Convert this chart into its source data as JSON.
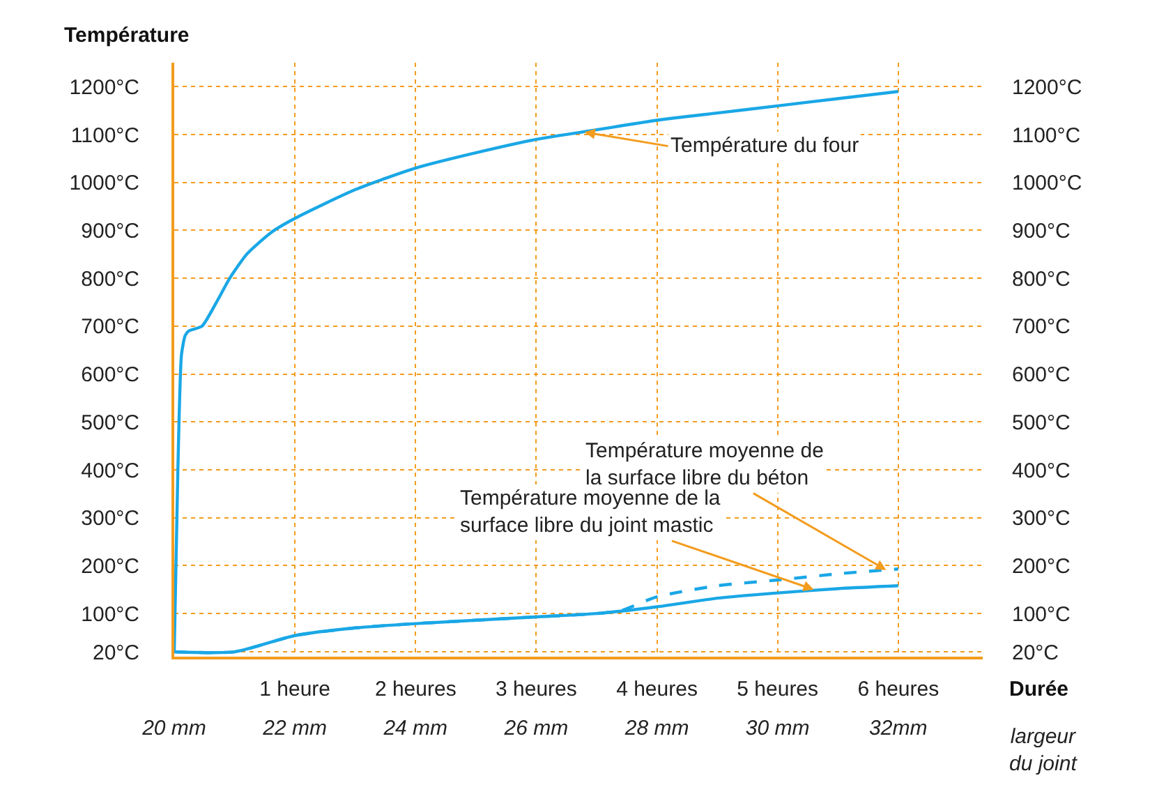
{
  "chart_data": {
    "type": "line",
    "xlabel": "Durée",
    "x2label": "largeur du joint",
    "ylabel": "Température",
    "xlim": [
      0,
      6.7
    ],
    "xticks": [
      {
        "value": 1,
        "label": "1 heure"
      },
      {
        "value": 2,
        "label": "2 heures"
      },
      {
        "value": 3,
        "label": "3 heures"
      },
      {
        "value": 4,
        "label": "4 heures"
      },
      {
        "value": 5,
        "label": "5 heures"
      },
      {
        "value": 6,
        "label": "6 heures"
      }
    ],
    "x2lim": [
      20,
      33.4
    ],
    "x2ticks": [
      {
        "value": 20,
        "label": "20 mm"
      },
      {
        "value": 22,
        "label": "22 mm"
      },
      {
        "value": 24,
        "label": "24 mm"
      },
      {
        "value": 26,
        "label": "26 mm"
      },
      {
        "value": 28,
        "label": "28 mm"
      },
      {
        "value": 30,
        "label": "30 mm"
      },
      {
        "value": 32,
        "label": "32mm"
      }
    ],
    "ylim": [
      10,
      1250
    ],
    "yticks": [
      {
        "value": 20,
        "label": "20°C"
      },
      {
        "value": 100,
        "label": "100°C"
      },
      {
        "value": 200,
        "label": "200°C"
      },
      {
        "value": 300,
        "label": "300°C"
      },
      {
        "value": 400,
        "label": "400°C"
      },
      {
        "value": 500,
        "label": "500°C"
      },
      {
        "value": 600,
        "label": "600°C"
      },
      {
        "value": 700,
        "label": "700°C"
      },
      {
        "value": 800,
        "label": "800°C"
      },
      {
        "value": 900,
        "label": "900°C"
      },
      {
        "value": 1000,
        "label": "1000°C"
      },
      {
        "value": 1100,
        "label": "1100°C"
      },
      {
        "value": 1200,
        "label": "1200°C"
      }
    ],
    "y2lim": [
      10,
      1250
    ],
    "y2ticks": [
      {
        "value": 20,
        "label": "20°C"
      },
      {
        "value": 100,
        "label": "100°C"
      },
      {
        "value": 200,
        "label": "200°C"
      },
      {
        "value": 300,
        "label": "300°C"
      },
      {
        "value": 400,
        "label": "400°C"
      },
      {
        "value": 500,
        "label": "500°C"
      },
      {
        "value": 600,
        "label": "600°C"
      },
      {
        "value": 700,
        "label": "700°C"
      },
      {
        "value": 800,
        "label": "800°C"
      },
      {
        "value": 900,
        "label": "900°C"
      },
      {
        "value": 1000,
        "label": "1000°C"
      },
      {
        "value": 1100,
        "label": "1100°C"
      },
      {
        "value": 1200,
        "label": "1200°C"
      }
    ],
    "grid": true,
    "marker": "none",
    "series": [
      {
        "color": "#1aa7e6",
        "line_style": "solid",
        "x": [
          0,
          0.03,
          0.06,
          0.09,
          0.12,
          0.23,
          0.35,
          0.46,
          0.6,
          0.8,
          1,
          1.5,
          2,
          2.5,
          3,
          3.5,
          4,
          4.5,
          5,
          5.5,
          6
        ],
        "values": [
          20,
          400,
          640,
          680,
          690,
          700,
          750,
          800,
          850,
          895,
          925,
          985,
          1030,
          1062,
          1090,
          1110,
          1130,
          1145,
          1160,
          1175,
          1190
        ]
      },
      {
        "color": "#1aa7e6",
        "line_style": "dashed",
        "x": [
          0,
          0.5,
          1,
          1.5,
          2,
          3,
          3.5,
          3.7,
          4,
          4.5,
          5,
          5.5,
          6
        ],
        "values": [
          20,
          20,
          54,
          70,
          79,
          93,
          100,
          106,
          135,
          158,
          170,
          183,
          193
        ]
      },
      {
        "color": "#1aa7e6",
        "line_style": "solid",
        "x": [
          0,
          0.5,
          1,
          1.5,
          2,
          3,
          3.5,
          4,
          4.5,
          5,
          5.5,
          6
        ],
        "values": [
          20,
          20,
          54,
          70,
          79,
          93,
          100,
          114,
          132,
          143,
          152,
          158
        ]
      }
    ],
    "annotations": [
      {
        "text": "Température du four",
        "x": 3.4,
        "y": 1105
      },
      {
        "text": "Température moyenne de\nla surface libre du béton",
        "x": 5.9,
        "y": 191
      },
      {
        "text": "Température moyenne de la\nsurface libre du joint mastic",
        "x": 5.3,
        "y": 150
      }
    ]
  }
}
